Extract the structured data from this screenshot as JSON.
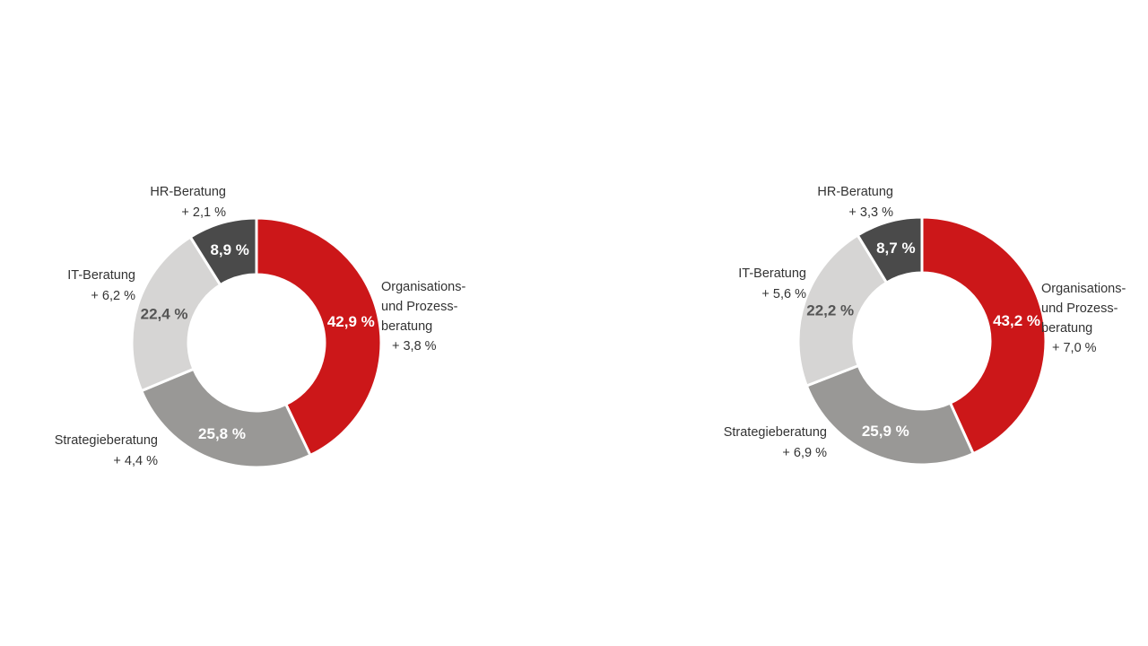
{
  "colors": {
    "org": "#cc1719",
    "strategie": "#999896",
    "it": "#d6d5d4",
    "hr": "#4a4a4a",
    "separator": "#ffffff",
    "label_dark_slice": "#ffffff",
    "label_light_slice": "#555555"
  },
  "chart_data": [
    {
      "type": "pie",
      "donut": true,
      "title": "",
      "slices": [
        {
          "key": "org",
          "label_lines": [
            "Organisations-",
            "und Prozess-",
            "beratung"
          ],
          "value": 42.9,
          "value_text": "42,9 %",
          "change": "+ 3,8 %"
        },
        {
          "key": "strategie",
          "label_lines": [
            "Strategieberatung"
          ],
          "value": 25.8,
          "value_text": "25,8 %",
          "change": "+ 4,4 %"
        },
        {
          "key": "it",
          "label_lines": [
            "IT-Beratung"
          ],
          "value": 22.4,
          "value_text": "22,4 %",
          "change": "+ 6,2 %"
        },
        {
          "key": "hr",
          "label_lines": [
            "HR-Beratung"
          ],
          "value": 8.9,
          "value_text": "8,9 %",
          "change": "+ 2,1 %"
        }
      ]
    },
    {
      "type": "pie",
      "donut": true,
      "title": "",
      "slices": [
        {
          "key": "org",
          "label_lines": [
            "Organisations-",
            "und Prozess-",
            "beratung"
          ],
          "value": 43.2,
          "value_text": "43,2 %",
          "change": "+ 7,0 %"
        },
        {
          "key": "strategie",
          "label_lines": [
            "Strategieberatung"
          ],
          "value": 25.9,
          "value_text": "25,9 %",
          "change": "+ 6,9 %"
        },
        {
          "key": "it",
          "label_lines": [
            "IT-Beratung"
          ],
          "value": 22.2,
          "value_text": "22,2 %",
          "change": "+ 5,6 %"
        },
        {
          "key": "hr",
          "label_lines": [
            "HR-Beratung"
          ],
          "value": 8.7,
          "value_text": "8,7 %",
          "change": "+ 3,3 %"
        }
      ]
    }
  ]
}
